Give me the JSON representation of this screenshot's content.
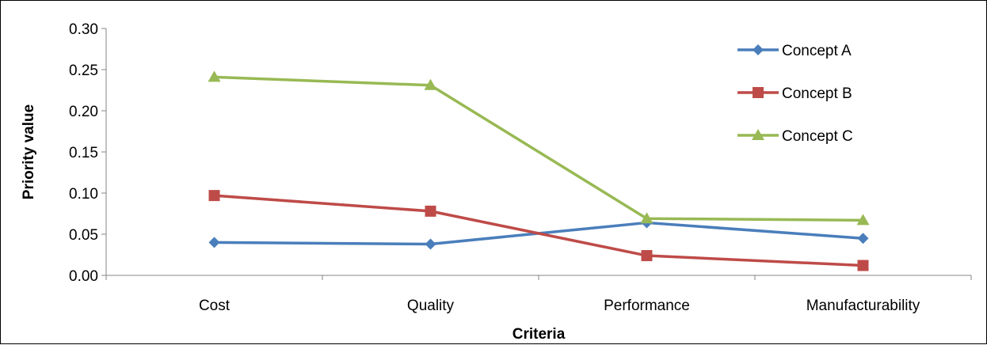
{
  "chart_data": {
    "type": "line",
    "categories": [
      "Cost",
      "Quality",
      "Performance",
      "Manufacturability"
    ],
    "series": [
      {
        "name": "Concept A",
        "values": [
          0.04,
          0.038,
          0.064,
          0.045
        ],
        "color": "#4a7ebb",
        "marker": "diamond"
      },
      {
        "name": "Concept B",
        "values": [
          0.097,
          0.078,
          0.024,
          0.012
        ],
        "color": "#be4b48",
        "marker": "square"
      },
      {
        "name": "Concept C",
        "values": [
          0.241,
          0.231,
          0.069,
          0.067
        ],
        "color": "#98b954",
        "marker": "triangle"
      }
    ],
    "xlabel": "Criteria",
    "ylabel": "Priority value",
    "ylim": [
      0,
      0.3
    ],
    "yticks": [
      "0.00",
      "0.05",
      "0.10",
      "0.15",
      "0.20",
      "0.25",
      "0.30"
    ],
    "ytick_values": [
      0,
      0.05,
      0.1,
      0.15,
      0.2,
      0.25,
      0.3
    ],
    "grid": false,
    "legend_position": "top-right"
  }
}
